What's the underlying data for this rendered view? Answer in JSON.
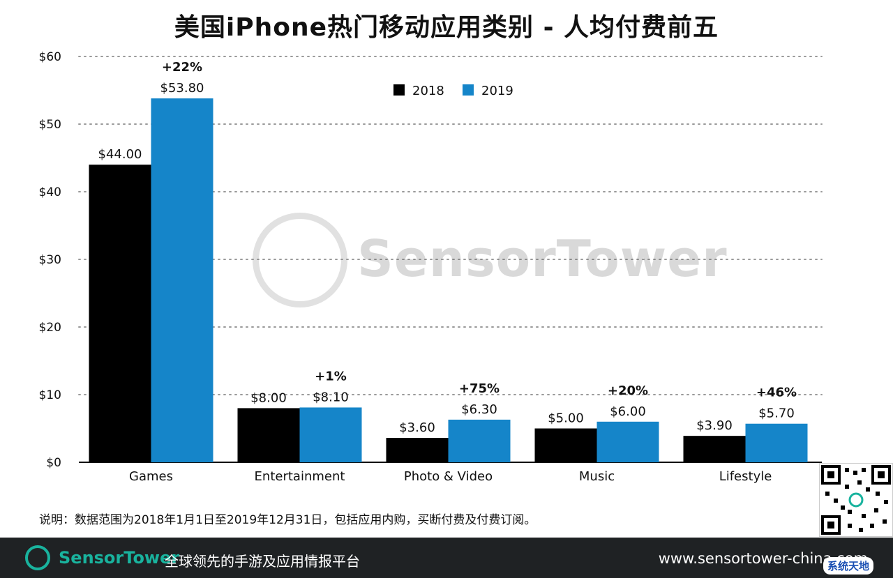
{
  "page": {
    "title": "美国iPhone热门移动应用类别 - 人均付费前五"
  },
  "chart_data": {
    "type": "bar",
    "title": "美国iPhone热门移动应用类别 - 人均付费前五",
    "categories": [
      "Games",
      "Entertainment",
      "Photo & Video",
      "Music",
      "Lifestyle"
    ],
    "series": [
      {
        "name": "2018",
        "color": "#000000",
        "values": [
          44.0,
          8.0,
          3.6,
          5.0,
          3.9
        ],
        "labels": [
          "$44.00",
          "$8.00",
          "$3.60",
          "$5.00",
          "$3.90"
        ]
      },
      {
        "name": "2019",
        "color": "#1585c9",
        "values": [
          53.8,
          8.1,
          6.3,
          6.0,
          5.7
        ],
        "labels": [
          "$53.80",
          "$8.10",
          "$6.30",
          "$6.00",
          "$5.70"
        ]
      }
    ],
    "growth_labels": [
      "+22%",
      "+1%",
      "+75%",
      "+20%",
      "+46%"
    ],
    "ylim": [
      0,
      60
    ],
    "yticks": [
      0,
      10,
      20,
      30,
      40,
      50,
      60
    ],
    "ytick_labels": [
      "$0",
      "$10",
      "$20",
      "$30",
      "$40",
      "$50",
      "$60"
    ],
    "grid": true,
    "legend_position": "top-center"
  },
  "watermark": {
    "text": "SensorTower"
  },
  "note": "说明：数据范围为2018年1月1日至2019年12月31日，包括应用内购，买断付费及付费订阅。",
  "footer": {
    "brand": "SensorTower",
    "slogan": "全球领先的手游及应用情报平台",
    "url": "www.sensortower-china.com",
    "accent_color": "#19b39e"
  },
  "badge": "系统天地"
}
